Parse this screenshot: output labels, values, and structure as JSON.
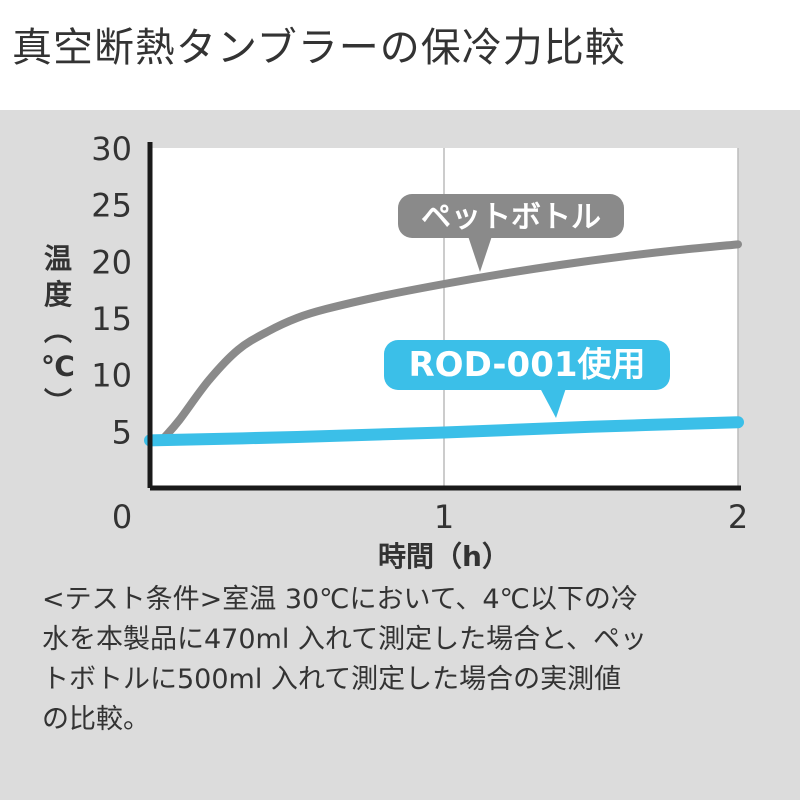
{
  "chart_data": {
    "type": "line",
    "title": "真空断熱タンブラーの保冷力比較",
    "xlabel": "時間（h）",
    "ylabel": "温度（℃）",
    "xlim": [
      0,
      2
    ],
    "ylim": [
      0,
      30
    ],
    "x_ticks": [
      "0",
      "1",
      "2"
    ],
    "y_ticks": [
      "5",
      "10",
      "15",
      "20",
      "25",
      "30"
    ],
    "grid": "vertical",
    "series": [
      {
        "name": "ペットボトル",
        "color": "#8a8a8a",
        "x": [
          0.05,
          0.1,
          0.2,
          0.3,
          0.4,
          0.5,
          0.6,
          0.8,
          1.0,
          1.2,
          1.4,
          1.6,
          1.8,
          2.0
        ],
        "y": [
          4.5,
          6.0,
          9.5,
          12.2,
          13.8,
          15.0,
          15.8,
          17.0,
          18.0,
          18.9,
          19.7,
          20.4,
          21.0,
          21.5
        ]
      },
      {
        "name": "ROD-001使用",
        "color": "#3bbfe8",
        "x": [
          0.0,
          0.5,
          1.0,
          1.5,
          2.0
        ],
        "y": [
          4.2,
          4.5,
          4.9,
          5.4,
          5.8
        ]
      }
    ],
    "annotations": [
      {
        "text": "ペットボトル",
        "series": 0,
        "color": "#8a8a8a"
      },
      {
        "text": "ROD-001使用",
        "series": 1,
        "color": "#3bbfe8"
      }
    ]
  },
  "note": {
    "lines": [
      "<テスト条件>室温 30℃において、4℃以下の冷",
      "水を本製品に470ml 入れて測定した場合と、ペッ",
      "トボトルに500ml 入れて測定した場合の実測値",
      "の比較。"
    ]
  }
}
